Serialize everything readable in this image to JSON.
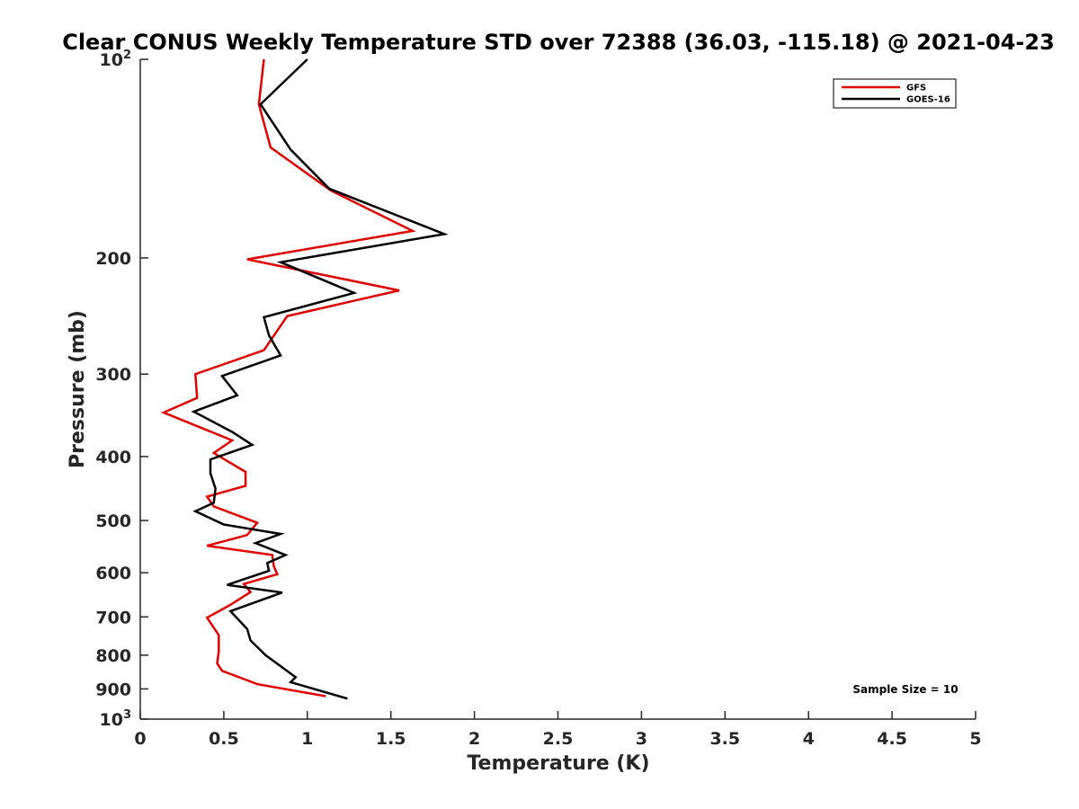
{
  "chart_data": {
    "type": "line",
    "title": "Clear CONUS Weekly Temperature STD over 72388 (36.03, -115.18) @ 2021-04-23",
    "xlabel": "Temperature (K)",
    "ylabel": "Pressure (mb)",
    "xlim": [
      0,
      5
    ],
    "ylim": [
      100,
      1000
    ],
    "y_scale": "log",
    "y_reversed": true,
    "grid": false,
    "legend_position": "top-right",
    "x_ticks": [
      0,
      0.5,
      1,
      1.5,
      2,
      2.5,
      3,
      3.5,
      4,
      4.5,
      5
    ],
    "x_tick_labels": [
      "0",
      "0.5",
      "1",
      "1.5",
      "2",
      "2.5",
      "3",
      "3.5",
      "4",
      "4.5",
      "5"
    ],
    "y_ticks": [
      {
        "value": 100,
        "base": "10",
        "exp": "2"
      },
      {
        "value": 200,
        "label": "200"
      },
      {
        "value": 300,
        "label": "300"
      },
      {
        "value": 400,
        "label": "400"
      },
      {
        "value": 500,
        "label": "500"
      },
      {
        "value": 600,
        "label": "600"
      },
      {
        "value": 700,
        "label": "700"
      },
      {
        "value": 800,
        "label": "800"
      },
      {
        "value": 900,
        "label": "900"
      },
      {
        "value": 1000,
        "base": "10",
        "exp": "3"
      }
    ],
    "series": [
      {
        "name": "GFS",
        "color": "#e00000",
        "points": [
          [
            0.74,
            100
          ],
          [
            0.71,
            117
          ],
          [
            0.78,
            136
          ],
          [
            1.14,
            158
          ],
          [
            1.63,
            182
          ],
          [
            0.64,
            201
          ],
          [
            1.55,
            224
          ],
          [
            0.88,
            245
          ],
          [
            0.74,
            276
          ],
          [
            0.33,
            300
          ],
          [
            0.34,
            326
          ],
          [
            0.14,
            343
          ],
          [
            0.55,
            378
          ],
          [
            0.44,
            395
          ],
          [
            0.63,
            422
          ],
          [
            0.63,
            443
          ],
          [
            0.4,
            460
          ],
          [
            0.44,
            476
          ],
          [
            0.7,
            504
          ],
          [
            0.64,
            526
          ],
          [
            0.4,
            546
          ],
          [
            0.79,
            564
          ],
          [
            0.8,
            587
          ],
          [
            0.82,
            603
          ],
          [
            0.62,
            624
          ],
          [
            0.66,
            642
          ],
          [
            0.54,
            671
          ],
          [
            0.4,
            702
          ],
          [
            0.47,
            746
          ],
          [
            0.47,
            790
          ],
          [
            0.46,
            823
          ],
          [
            0.49,
            845
          ],
          [
            0.7,
            885
          ],
          [
            1.11,
            923
          ]
        ]
      },
      {
        "name": "GOES-16",
        "color": "#000000",
        "points": [
          [
            1.0,
            100
          ],
          [
            0.72,
            117
          ],
          [
            0.9,
            137
          ],
          [
            1.13,
            157
          ],
          [
            1.82,
            184
          ],
          [
            0.84,
            203
          ],
          [
            1.28,
            226
          ],
          [
            0.74,
            246
          ],
          [
            0.77,
            262
          ],
          [
            0.84,
            281
          ],
          [
            0.49,
            302
          ],
          [
            0.58,
            323
          ],
          [
            0.32,
            342
          ],
          [
            0.55,
            367
          ],
          [
            0.67,
            384
          ],
          [
            0.42,
            404
          ],
          [
            0.42,
            424
          ],
          [
            0.45,
            447
          ],
          [
            0.44,
            470
          ],
          [
            0.33,
            484
          ],
          [
            0.5,
            507
          ],
          [
            0.84,
            524
          ],
          [
            0.69,
            541
          ],
          [
            0.87,
            564
          ],
          [
            0.76,
            580
          ],
          [
            0.77,
            596
          ],
          [
            0.52,
            626
          ],
          [
            0.85,
            643
          ],
          [
            0.54,
            686
          ],
          [
            0.64,
            730
          ],
          [
            0.66,
            760
          ],
          [
            0.75,
            800
          ],
          [
            0.93,
            864
          ],
          [
            0.9,
            879
          ],
          [
            1.24,
            931
          ]
        ]
      }
    ],
    "annotations": [
      "Sample Size = 10"
    ]
  }
}
